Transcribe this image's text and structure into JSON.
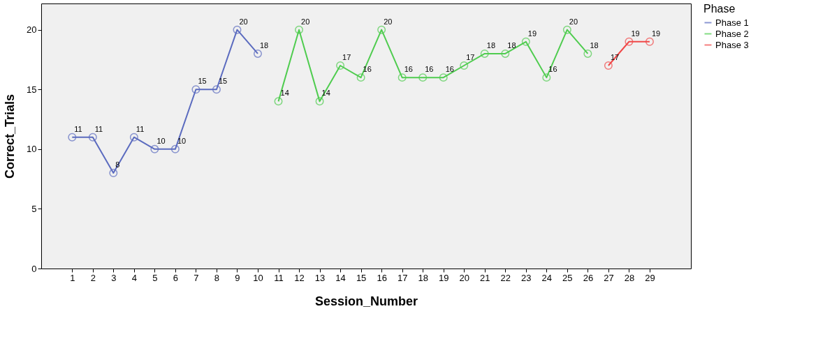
{
  "chart_data": {
    "type": "line",
    "xlabel": "Session_Number",
    "ylabel": "Correct_Trials",
    "legend_title": "Phase",
    "legend": "right",
    "marker": "circle",
    "line_style": "solid",
    "grid": false,
    "data_labels": true,
    "xlim": [
      -0.5,
      31
    ],
    "xticks": [
      1,
      2,
      3,
      4,
      5,
      6,
      7,
      8,
      9,
      10,
      11,
      12,
      13,
      14,
      15,
      16,
      17,
      18,
      19,
      20,
      21,
      22,
      23,
      24,
      25,
      26,
      27,
      28,
      29
    ],
    "ylim": [
      0,
      22.2
    ],
    "yticks": [
      0,
      5,
      10,
      15,
      20
    ],
    "series": [
      {
        "name": "Phase 1",
        "color": "#5b6bbf",
        "x": [
          1,
          2,
          3,
          4,
          5,
          6,
          7,
          8,
          9,
          10
        ],
        "values": [
          11,
          11,
          8,
          11,
          10,
          10,
          15,
          15,
          20,
          18
        ]
      },
      {
        "name": "Phase 2",
        "color": "#4fcc4f",
        "x": [
          11,
          12,
          13,
          14,
          15,
          16,
          17,
          18,
          19,
          20,
          21,
          22,
          23,
          24,
          25,
          26
        ],
        "values": [
          14,
          20,
          14,
          17,
          16,
          20,
          16,
          16,
          16,
          17,
          18,
          18,
          19,
          16,
          20,
          18
        ]
      },
      {
        "name": "Phase 3",
        "color": "#f04848",
        "x": [
          27,
          28,
          29
        ],
        "values": [
          17,
          19,
          19
        ]
      }
    ]
  }
}
